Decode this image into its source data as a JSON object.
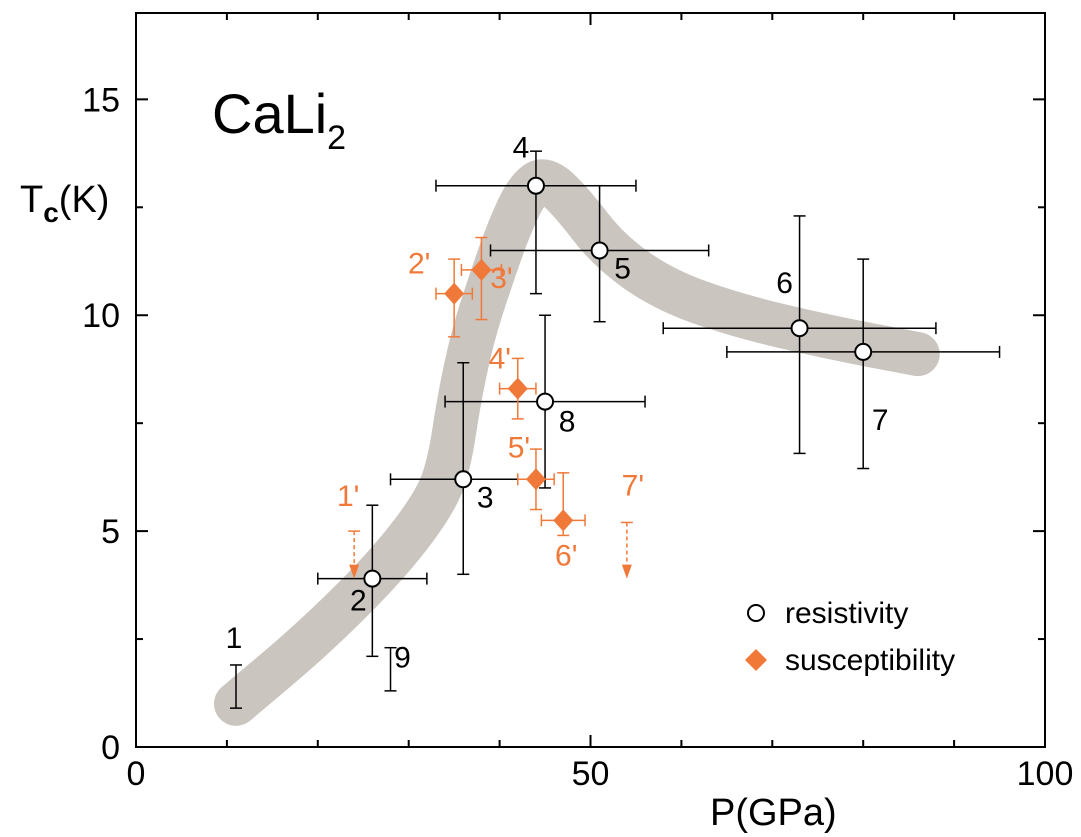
{
  "chart_data": {
    "type": "scatter",
    "title": "CaLi",
    "title_subscript": "2",
    "xlabel": "P(GPa)",
    "ylabel_main": "T",
    "ylabel_sub": "c",
    "ylabel_unit": "(K)",
    "xlim": [
      0,
      100
    ],
    "ylim": [
      0,
      17
    ],
    "xticks": [
      "0",
      "50",
      "100"
    ],
    "yticks": [
      "0",
      "5",
      "10",
      "15"
    ],
    "grid": false,
    "legend_position": "bottom-right",
    "colors": {
      "resistivity": "#000000",
      "susceptibility": "#f07838",
      "trend_band": "#cbc5c0"
    },
    "trend_band": [
      [
        11,
        1.0
      ],
      [
        20,
        2.6
      ],
      [
        28,
        4.3
      ],
      [
        33,
        5.7
      ],
      [
        34.5,
        6.6
      ],
      [
        35.5,
        8.0
      ],
      [
        37,
        9.5
      ],
      [
        39,
        10.8
      ],
      [
        41,
        12.0
      ],
      [
        43,
        12.9
      ],
      [
        45,
        13.2
      ],
      [
        48,
        12.6
      ],
      [
        52,
        11.5
      ],
      [
        58,
        10.6
      ],
      [
        66,
        10.0
      ],
      [
        76,
        9.5
      ],
      [
        86,
        9.1
      ]
    ],
    "series": [
      {
        "name": "resistivity",
        "marker": "open-circle",
        "points": [
          {
            "label": "1",
            "x": 11,
            "y": null,
            "yerr_range": [
              0.9,
              1.9
            ]
          },
          {
            "label": "2",
            "x": 26,
            "y": 3.9,
            "xerr": 6,
            "yerr_range": [
              2.1,
              5.6
            ]
          },
          {
            "label": "3",
            "x": 36,
            "y": 6.2,
            "xerr": 8,
            "yerr_range": [
              4.0,
              8.9
            ]
          },
          {
            "label": "4",
            "x": 44,
            "y": 13.0,
            "xerr": 11,
            "yerr_range": [
              10.5,
              13.8
            ]
          },
          {
            "label": "5",
            "x": 51,
            "y": 11.5,
            "xerr": 12,
            "yerr_range": [
              9.85,
              13.0
            ]
          },
          {
            "label": "6",
            "x": 73,
            "y": 9.7,
            "xerr": 15,
            "yerr_range": [
              6.8,
              12.3
            ]
          },
          {
            "label": "7",
            "x": 80,
            "y": 9.15,
            "xerr": 15,
            "yerr_range": [
              6.45,
              11.3
            ]
          },
          {
            "label": "8",
            "x": 45,
            "y": 8.0,
            "xerr": 11,
            "yerr_range": [
              6.0,
              10.0
            ]
          },
          {
            "label": "9",
            "x": 28,
            "y": null,
            "yerr_range": [
              1.3,
              2.3
            ]
          }
        ]
      },
      {
        "name": "susceptibility",
        "marker": "filled-diamond",
        "points": [
          {
            "label": "1'",
            "x": 24,
            "y": null,
            "yrange_arrow": [
              5.0,
              3.9
            ]
          },
          {
            "label": "2'",
            "x": 35,
            "y": 10.5,
            "xerr": 2,
            "yerr_range": [
              9.5,
              11.3
            ]
          },
          {
            "label": "3'",
            "x": 38,
            "y": 11.05,
            "xerr": 2.2,
            "yerr_range": [
              9.9,
              11.8
            ]
          },
          {
            "label": "4'",
            "x": 42,
            "y": 8.3,
            "xerr": 2,
            "yerr_range": [
              7.6,
              9.0
            ]
          },
          {
            "label": "5'",
            "x": 44,
            "y": 6.2,
            "xerr": 2,
            "yerr_range": [
              5.5,
              6.9
            ]
          },
          {
            "label": "6'",
            "x": 47,
            "y": 5.25,
            "xerr": 2.4,
            "yerr_range": [
              4.9,
              6.35
            ]
          },
          {
            "label": "7'",
            "x": 54,
            "y": null,
            "yrange_arrow": [
              5.2,
              3.9
            ]
          }
        ]
      }
    ],
    "legend": [
      "resistivity",
      "susceptibility"
    ]
  }
}
